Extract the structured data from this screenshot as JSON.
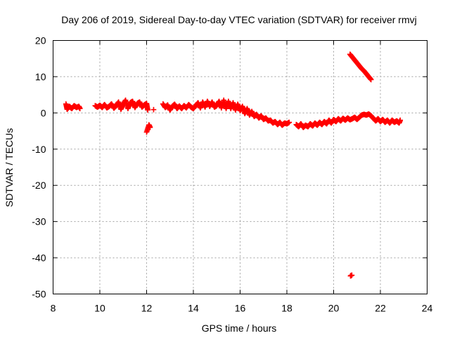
{
  "chart_data": {
    "type": "scatter",
    "title": "Day 206 of 2019, Sidereal Day-to-day VTEC variation (SDTVAR) for receiver rmvj",
    "xlabel": "GPS time / hours",
    "ylabel": "SDTVAR / TECUs",
    "xlim": [
      8,
      24
    ],
    "ylim": [
      -50,
      20
    ],
    "xticks": [
      8,
      10,
      12,
      14,
      16,
      18,
      20,
      22,
      24
    ],
    "yticks": [
      -50,
      -40,
      -30,
      -20,
      -10,
      0,
      10,
      20
    ],
    "grid": true,
    "marker": "plus",
    "color": "#ff0000",
    "series": [
      {
        "name": "SDTVAR",
        "points": [
          [
            8.55,
            2.5
          ],
          [
            8.6,
            1.0
          ],
          [
            8.7,
            1.8
          ],
          [
            8.8,
            1.2
          ],
          [
            8.9,
            2.0
          ],
          [
            9.0,
            1.5
          ],
          [
            9.1,
            1.8
          ],
          [
            9.15,
            1.2
          ],
          [
            9.8,
            2.0
          ],
          [
            9.9,
            1.6
          ],
          [
            10.0,
            2.1
          ],
          [
            10.1,
            1.5
          ],
          [
            10.2,
            2.3
          ],
          [
            10.3,
            1.4
          ],
          [
            10.4,
            1.8
          ],
          [
            10.5,
            2.5
          ],
          [
            10.6,
            1.3
          ],
          [
            10.7,
            2.0
          ],
          [
            10.8,
            3.0
          ],
          [
            10.9,
            1.0
          ],
          [
            11.0,
            2.4
          ],
          [
            11.1,
            3.5
          ],
          [
            11.2,
            1.2
          ],
          [
            11.3,
            2.8
          ],
          [
            11.4,
            3.2
          ],
          [
            11.5,
            1.5
          ],
          [
            11.6,
            2.6
          ],
          [
            11.7,
            3.0
          ],
          [
            11.8,
            1.6
          ],
          [
            11.9,
            2.2
          ],
          [
            12.0,
            2.6
          ],
          [
            12.05,
            0.8
          ],
          [
            12.0,
            -5.3
          ],
          [
            12.1,
            -3.3
          ],
          [
            12.15,
            -4.0
          ],
          [
            12.3,
            0.9
          ],
          [
            12.7,
            2.5
          ],
          [
            12.8,
            1.5
          ],
          [
            12.9,
            2.2
          ],
          [
            13.0,
            0.8
          ],
          [
            13.1,
            1.8
          ],
          [
            13.2,
            2.4
          ],
          [
            13.3,
            1.2
          ],
          [
            13.4,
            1.9
          ],
          [
            13.5,
            1.2
          ],
          [
            13.6,
            2.0
          ],
          [
            13.7,
            1.4
          ],
          [
            13.8,
            2.3
          ],
          [
            13.9,
            1.6
          ],
          [
            14.0,
            1.2
          ],
          [
            14.1,
            2.0
          ],
          [
            14.2,
            2.8
          ],
          [
            14.3,
            1.4
          ],
          [
            14.4,
            3.0
          ],
          [
            14.5,
            1.6
          ],
          [
            14.6,
            3.2
          ],
          [
            14.7,
            1.8
          ],
          [
            14.8,
            3.0
          ],
          [
            14.9,
            1.6
          ],
          [
            15.0,
            2.0
          ],
          [
            15.1,
            3.2
          ],
          [
            15.2,
            1.4
          ],
          [
            15.3,
            3.5
          ],
          [
            15.4,
            1.2
          ],
          [
            15.5,
            3.2
          ],
          [
            15.6,
            1.2
          ],
          [
            15.7,
            2.8
          ],
          [
            15.8,
            0.8
          ],
          [
            15.9,
            2.4
          ],
          [
            16.0,
            0.6
          ],
          [
            16.1,
            1.8
          ],
          [
            16.2,
            -0.2
          ],
          [
            16.3,
            1.2
          ],
          [
            16.4,
            -0.6
          ],
          [
            16.5,
            0.4
          ],
          [
            16.6,
            -1.0
          ],
          [
            16.7,
            -0.4
          ],
          [
            16.8,
            -1.4
          ],
          [
            16.9,
            -0.8
          ],
          [
            17.0,
            -1.8
          ],
          [
            17.1,
            -1.4
          ],
          [
            17.2,
            -2.2
          ],
          [
            17.3,
            -2.0
          ],
          [
            17.4,
            -2.8
          ],
          [
            17.5,
            -2.4
          ],
          [
            17.6,
            -3.2
          ],
          [
            17.7,
            -2.6
          ],
          [
            17.8,
            -3.4
          ],
          [
            17.9,
            -2.8
          ],
          [
            18.0,
            -3.0
          ],
          [
            18.1,
            -2.6
          ],
          [
            18.4,
            -3.2
          ],
          [
            18.5,
            -3.8
          ],
          [
            18.6,
            -3.0
          ],
          [
            18.7,
            -4.0
          ],
          [
            18.8,
            -3.4
          ],
          [
            18.9,
            -3.8
          ],
          [
            19.0,
            -3.0
          ],
          [
            19.1,
            -3.6
          ],
          [
            19.2,
            -2.8
          ],
          [
            19.3,
            -3.4
          ],
          [
            19.4,
            -2.6
          ],
          [
            19.5,
            -3.2
          ],
          [
            19.6,
            -2.4
          ],
          [
            19.7,
            -3.0
          ],
          [
            19.8,
            -2.0
          ],
          [
            19.9,
            -2.8
          ],
          [
            20.0,
            -1.8
          ],
          [
            20.1,
            -2.4
          ],
          [
            20.2,
            -1.6
          ],
          [
            20.3,
            -2.2
          ],
          [
            20.4,
            -1.5
          ],
          [
            20.5,
            -2.0
          ],
          [
            20.6,
            -1.4
          ],
          [
            20.7,
            -1.9
          ],
          [
            20.8,
            -1.6
          ],
          [
            20.9,
            -1.2
          ],
          [
            21.0,
            -1.8
          ],
          [
            21.1,
            -1.2
          ],
          [
            21.2,
            -0.6
          ],
          [
            21.3,
            -0.4
          ],
          [
            21.4,
            -0.6
          ],
          [
            21.5,
            -0.3
          ],
          [
            21.6,
            -0.8
          ],
          [
            21.7,
            -1.5
          ],
          [
            21.8,
            -2.2
          ],
          [
            21.9,
            -1.6
          ],
          [
            22.0,
            -2.4
          ],
          [
            22.1,
            -1.8
          ],
          [
            22.2,
            -2.6
          ],
          [
            22.3,
            -2.0
          ],
          [
            22.4,
            -2.8
          ],
          [
            22.5,
            -2.0
          ],
          [
            22.6,
            -2.6
          ],
          [
            22.7,
            -2.2
          ],
          [
            22.8,
            -2.8
          ],
          [
            22.85,
            -2.0
          ],
          [
            20.7,
            16.2
          ],
          [
            20.8,
            15.4
          ],
          [
            20.9,
            14.6
          ],
          [
            21.0,
            13.8
          ],
          [
            21.1,
            13.0
          ],
          [
            21.2,
            12.2
          ],
          [
            21.3,
            11.6
          ],
          [
            21.4,
            10.8
          ],
          [
            21.5,
            10.0
          ],
          [
            21.6,
            9.2
          ],
          [
            20.72,
            -45.0
          ],
          [
            20.78,
            -44.8
          ]
        ]
      }
    ]
  }
}
